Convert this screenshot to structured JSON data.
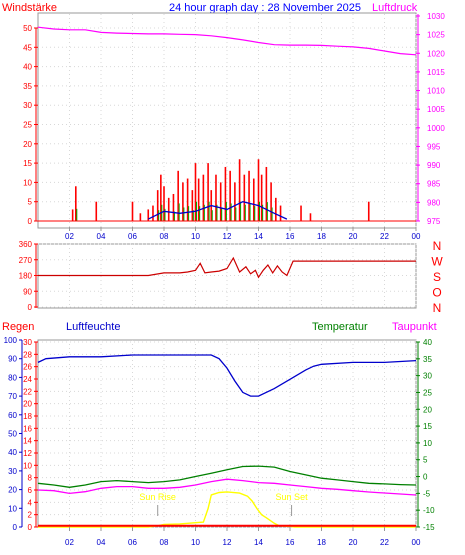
{
  "header": {
    "wind_label": "Windstärke",
    "title": "24 hour graph day : 28 November 2025",
    "pressure_label": "Luftdruck"
  },
  "wind_panel": {
    "wind_ticks": [
      "0",
      "5",
      "10",
      "15",
      "20",
      "25",
      "30",
      "35",
      "40",
      "45",
      "50"
    ],
    "pressure_ticks": [
      "975",
      "980",
      "985",
      "990",
      "995",
      "1000",
      "1005",
      "1010",
      "1015",
      "1020",
      "1025",
      "1030"
    ]
  },
  "dir_panel": {
    "deg_ticks": [
      "0",
      "90",
      "180",
      "270",
      "360"
    ],
    "compass_labels": [
      "N",
      "W",
      "S",
      "O",
      "N"
    ]
  },
  "bottom_panel": {
    "rain_label": "Regen",
    "humidity_label": "Luftfeuchte",
    "temp_label": "Temperatur",
    "dew_label": "Taupunkt",
    "sunrise_label": "Sun Rise",
    "sunset_label": "Sun Set",
    "humidity_ticks": [
      "0",
      "10",
      "20",
      "30",
      "40",
      "50",
      "60",
      "70",
      "80",
      "90",
      "100"
    ],
    "rain_ticks": [
      "0",
      "2",
      "4",
      "6",
      "8",
      "10",
      "12",
      "14",
      "16",
      "18",
      "20",
      "22",
      "24",
      "26",
      "28",
      "30"
    ],
    "temp_ticks": [
      "-15",
      "-10",
      "-5",
      "0",
      "5",
      "10",
      "15",
      "20",
      "25",
      "30",
      "35",
      "40"
    ]
  },
  "time_ticks": [
    "02",
    "04",
    "06",
    "08",
    "10",
    "12",
    "14",
    "16",
    "18",
    "20",
    "22",
    "00"
  ],
  "colors": {
    "wind_gust": "#ff0000",
    "wind_avg": "#0000cc",
    "wind_green": "#00aa00",
    "pressure": "#ff00ff",
    "direction": "#cc0000",
    "humidity": "#0000cc",
    "temperature": "#008000",
    "dewpoint": "#ff00ff",
    "solar": "#ffff00",
    "rain": "#ff0000"
  },
  "chart_data": [
    {
      "type": "line",
      "x_unit": "hour",
      "xlim": [
        0,
        24
      ],
      "ylim": [
        0,
        50
      ],
      "y2lim": [
        972.5,
        1032.5
      ],
      "series": [
        {
          "name": "Windstärke",
          "axis": "left",
          "style": "bars",
          "x": [
            2.2,
            2.4,
            3.7,
            6.0,
            6.5,
            7.0,
            7.3,
            7.6,
            7.8,
            8.0,
            8.3,
            8.6,
            8.9,
            9.2,
            9.5,
            9.8,
            10.0,
            10.2,
            10.5,
            10.8,
            11.0,
            11.3,
            11.6,
            11.9,
            12.2,
            12.5,
            12.8,
            13.1,
            13.4,
            13.7,
            14.0,
            14.2,
            14.5,
            14.8,
            15.1,
            15.4,
            16.7,
            17.3,
            21.0
          ],
          "values": [
            3,
            9,
            5,
            5,
            2,
            3,
            4,
            8,
            12,
            9,
            6,
            7,
            13,
            10,
            11,
            8,
            15,
            11,
            12,
            15,
            8,
            12,
            10,
            14,
            13,
            10,
            16,
            12,
            13,
            11,
            16,
            12,
            14,
            10,
            6,
            4,
            4,
            2,
            5
          ]
        },
        {
          "name": "Windstärke avg",
          "axis": "left",
          "x": [
            7.0,
            8.0,
            9.0,
            10.0,
            11.0,
            12.0,
            13.0,
            14.0,
            15.0,
            15.8
          ],
          "values": [
            0.5,
            2.5,
            2,
            2.5,
            4,
            3,
            5,
            4,
            2,
            0.5
          ]
        },
        {
          "name": "Luftdruck",
          "axis": "right",
          "x": [
            0,
            1,
            2,
            3,
            4,
            5,
            6,
            7,
            8,
            9,
            10,
            11,
            12,
            13,
            14,
            15,
            16,
            17,
            18,
            19,
            20,
            21,
            22,
            23,
            24
          ],
          "values": [
            1027,
            1026.5,
            1026.3,
            1026.3,
            1025.6,
            1025.4,
            1025.3,
            1025.2,
            1025.2,
            1025.1,
            1025,
            1024.7,
            1024.2,
            1023.6,
            1022.9,
            1022.3,
            1022.2,
            1022.2,
            1022.1,
            1021.9,
            1021.7,
            1021.3,
            1020.6,
            1019.9,
            1019.6
          ]
        }
      ]
    },
    {
      "type": "line",
      "x_unit": "hour",
      "xlim": [
        0,
        24
      ],
      "ylim": [
        0,
        360
      ],
      "series": [
        {
          "name": "Windrichtung",
          "x": [
            0,
            7,
            8,
            9,
            9.5,
            10,
            10.3,
            10.6,
            11,
            11.5,
            12,
            12.4,
            12.8,
            13.2,
            13.5,
            13.8,
            14,
            14.3,
            14.6,
            14.9,
            15.2,
            15.5,
            15.8,
            16.2,
            18,
            20,
            22,
            24
          ],
          "values": [
            180,
            180,
            195,
            195,
            200,
            210,
            250,
            195,
            200,
            205,
            220,
            280,
            200,
            230,
            190,
            210,
            170,
            210,
            240,
            195,
            235,
            200,
            180,
            262,
            262,
            262,
            262,
            262
          ]
        }
      ]
    },
    {
      "type": "line",
      "x_unit": "hour",
      "xlim": [
        0,
        24
      ],
      "ylim": [
        0,
        100
      ],
      "y2lim": [
        -15,
        40
      ],
      "series": [
        {
          "name": "Luftfeuchte",
          "axis": "left",
          "x": [
            0,
            0.5,
            2,
            4,
            6,
            8,
            10,
            11,
            11.5,
            12,
            12.5,
            13,
            13.5,
            14,
            15,
            16,
            17,
            17.5,
            18,
            20,
            22,
            24
          ],
          "values": [
            88,
            90,
            91,
            91,
            92,
            92,
            92,
            92,
            90,
            85,
            78,
            72,
            70,
            70,
            74,
            79,
            84,
            86,
            87,
            88,
            88,
            89
          ]
        },
        {
          "name": "Temperatur",
          "axis": "right",
          "x": [
            0,
            1,
            2,
            3,
            4,
            5,
            6,
            7,
            8,
            9,
            10,
            11,
            12,
            13,
            14,
            15,
            16,
            17,
            18,
            19,
            20,
            21,
            22,
            23,
            24
          ],
          "values": [
            -2,
            -2.5,
            -3.2,
            -2.5,
            -1.5,
            -1.2,
            -1.5,
            -1.8,
            -1.5,
            -1,
            0,
            1,
            2,
            3,
            3.1,
            2.8,
            1.5,
            0.5,
            -0.5,
            -1,
            -1.5,
            -2,
            -2.2,
            -2.4,
            -2.5
          ]
        },
        {
          "name": "Taupunkt",
          "axis": "right",
          "x": [
            0,
            1,
            2,
            3,
            4,
            5,
            6,
            7,
            8,
            9,
            10,
            11,
            12,
            13,
            14,
            15,
            16,
            17,
            18,
            19,
            20,
            21,
            22,
            23,
            24
          ],
          "values": [
            -4,
            -4.2,
            -5,
            -4.5,
            -3.5,
            -3,
            -3,
            -3.5,
            -3.5,
            -3.2,
            -2.5,
            -1.5,
            -0.8,
            -1.2,
            -1.8,
            -2,
            -2.5,
            -3,
            -3.5,
            -3.8,
            -4.2,
            -4.6,
            -4.9,
            -5.2,
            -5.5
          ]
        },
        {
          "name": "Sonne",
          "axis": "rain",
          "x": [
            0,
            7,
            7.6,
            8,
            9,
            10.5,
            10.8,
            11,
            11.5,
            12,
            12.8,
            13.3,
            13.6,
            13.9,
            14.2,
            14.5,
            15,
            15.3,
            16,
            16.3,
            24
          ],
          "values": [
            0,
            0,
            0.2,
            0.4,
            0.5,
            0.8,
            3,
            5.2,
            5.6,
            5.7,
            5.5,
            5,
            4.2,
            3,
            2,
            1.5,
            0.6,
            0.2,
            0.1,
            0,
            0
          ]
        },
        {
          "name": "Regen",
          "axis": "rain",
          "x": [
            0,
            24
          ],
          "values": [
            0.2,
            0.2
          ]
        }
      ],
      "annotations": [
        {
          "text": "Sun Rise",
          "x": 7.6
        },
        {
          "text": "Sun Set",
          "x": 16.1
        }
      ]
    }
  ]
}
